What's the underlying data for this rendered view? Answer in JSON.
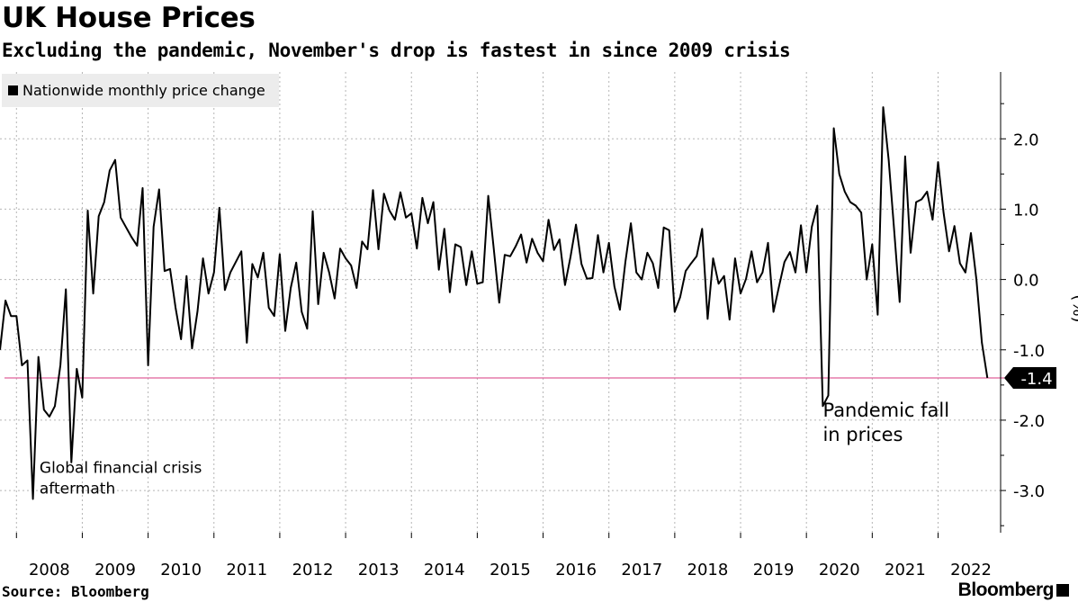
{
  "header": {
    "title": "UK House Prices",
    "subtitle": "Excluding the pandemic, November's drop is fastest in since 2009 crisis"
  },
  "footer": {
    "source": "Source: Bloomberg",
    "brand": "Bloomberg"
  },
  "colors": {
    "line": "#000000",
    "reference_line": "#e0609a",
    "grid": "#b5b5b5",
    "legend_bg": "#ececec",
    "badge_bg": "#000000",
    "badge_text": "#ffffff"
  },
  "chart_data": {
    "type": "line",
    "title": "UK House Prices",
    "subtitle": "Excluding the pandemic, November's drop is fastest in since 2009 crisis",
    "ylabel": "(%)",
    "xlabel": "",
    "ylim": [
      -3.6,
      2.95
    ],
    "yticks": [
      2.0,
      1.0,
      0.0,
      -1.0,
      -2.0,
      -3.0
    ],
    "ytick_labels": [
      "2.0",
      "1.0",
      "0.0",
      "-1.0",
      "-2.0",
      "-3.0"
    ],
    "xticks": [
      2008,
      2009,
      2010,
      2011,
      2012,
      2013,
      2014,
      2015,
      2016,
      2017,
      2018,
      2019,
      2020,
      2021,
      2022
    ],
    "xtick_labels": [
      "2008",
      "2009",
      "2010",
      "2011",
      "2012",
      "2013",
      "2014",
      "2015",
      "2016",
      "2017",
      "2018",
      "2019",
      "2020",
      "2021",
      "2022"
    ],
    "grid": true,
    "legend": {
      "position": "top-left",
      "entries": [
        "Nationwide monthly price change"
      ]
    },
    "reference_line": {
      "value": -1.4,
      "label": "-1.4"
    },
    "annotations": [
      {
        "lines": [
          "Global financial crisis",
          "aftermath"
        ],
        "x": 2008.35,
        "y": -2.75,
        "size": "small"
      },
      {
        "lines": [
          "Pandemic fall",
          "in prices"
        ],
        "x": 2020.25,
        "y": -1.95,
        "size": "large"
      }
    ],
    "series": [
      {
        "name": "Nationwide monthly price change",
        "x_start": 2007.75,
        "x_step": 0.08333,
        "values": [
          -1.0,
          -0.3,
          -0.52,
          -0.52,
          -1.22,
          -1.15,
          -3.12,
          -1.1,
          -1.85,
          -1.95,
          -1.8,
          -1.22,
          -0.14,
          -2.6,
          -1.27,
          -1.68,
          0.98,
          -0.2,
          0.9,
          1.1,
          1.55,
          1.7,
          0.88,
          0.74,
          0.6,
          0.48,
          1.3,
          -1.22,
          0.75,
          1.28,
          0.12,
          0.15,
          -0.4,
          -0.85,
          0.05,
          -0.98,
          -0.45,
          0.3,
          -0.2,
          0.1,
          1.02,
          -0.15,
          0.1,
          0.25,
          0.4,
          -0.9,
          0.22,
          0.03,
          0.38,
          -0.4,
          -0.52,
          0.36,
          -0.73,
          -0.12,
          0.24,
          -0.46,
          -0.7,
          0.97,
          -0.35,
          0.38,
          0.1,
          -0.27,
          0.44,
          0.3,
          0.2,
          -0.12,
          0.54,
          0.43,
          1.27,
          0.43,
          1.22,
          0.98,
          0.85,
          1.24,
          0.88,
          0.94,
          0.44,
          1.16,
          0.8,
          1.1,
          0.14,
          0.72,
          -0.18,
          0.5,
          0.46,
          -0.08,
          0.4,
          -0.06,
          -0.04,
          1.19,
          0.44,
          -0.33,
          0.35,
          0.33,
          0.47,
          0.64,
          0.24,
          0.58,
          0.38,
          0.26,
          0.85,
          0.42,
          0.57,
          -0.08,
          0.32,
          0.78,
          0.22,
          0.01,
          0.02,
          0.63,
          0.1,
          0.52,
          -0.1,
          -0.43,
          0.25,
          0.8,
          0.1,
          0.0,
          0.38,
          0.23,
          -0.12,
          0.74,
          0.7,
          -0.46,
          -0.25,
          0.12,
          0.23,
          0.33,
          0.72,
          -0.56,
          0.3,
          -0.06,
          0.05,
          -0.57,
          0.3,
          -0.2,
          0.01,
          0.4,
          -0.04,
          0.1,
          0.52,
          -0.46,
          -0.1,
          0.25,
          0.39,
          0.1,
          0.77,
          0.1,
          0.75,
          1.05,
          -1.8,
          -1.65,
          2.15,
          1.5,
          1.25,
          1.1,
          1.05,
          0.95,
          0.0,
          0.5,
          -0.5,
          2.45,
          1.7,
          0.7,
          -0.32,
          1.75,
          0.38,
          1.1,
          1.14,
          1.25,
          0.85,
          1.67,
          0.95,
          0.4,
          0.76,
          0.23,
          0.1,
          0.66,
          0.0,
          -0.9,
          -1.4
        ]
      }
    ]
  }
}
